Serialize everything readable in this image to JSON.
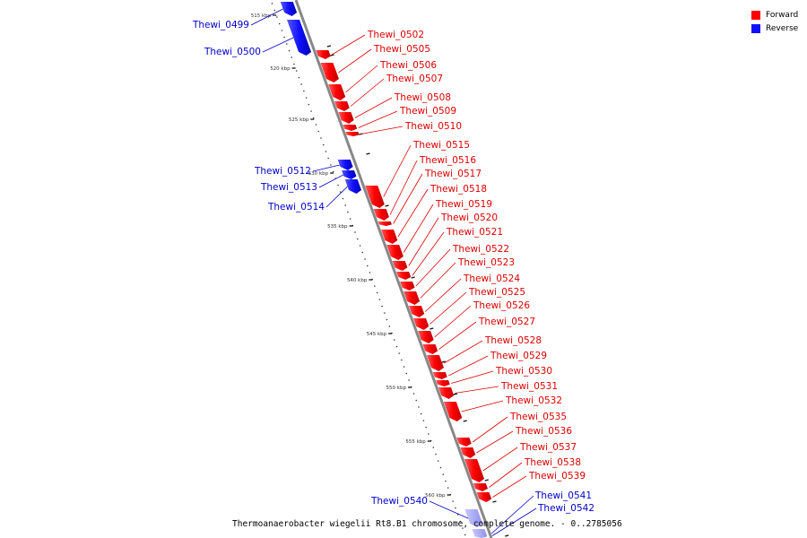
{
  "legend": {
    "forward_label": "Forward",
    "reverse_label": "Reverse",
    "forward_color": "#ff0000",
    "reverse_color": "#1010ff"
  },
  "caption": "Thermoanaerobacter wiegelii Rt8.B1 chromosome, complete genome. - 0..2785056",
  "scale_ticks": [
    "515 kbp",
    "520 kbp",
    "525 kbp",
    "530 kbp",
    "535 kbp",
    "540 kbp",
    "545 kbp",
    "550 kbp",
    "555 kbp",
    "560 kbp"
  ],
  "genes_forward": [
    "Thewi_0502",
    "Thewi_0505",
    "Thewi_0506",
    "Thewi_0507",
    "Thewi_0508",
    "Thewi_0509",
    "Thewi_0510",
    "Thewi_0515",
    "Thewi_0516",
    "Thewi_0517",
    "Thewi_0518",
    "Thewi_0519",
    "Thewi_0520",
    "Thewi_0521",
    "Thewi_0522",
    "Thewi_0523",
    "Thewi_0524",
    "Thewi_0525",
    "Thewi_0526",
    "Thewi_0527",
    "Thewi_0528",
    "Thewi_0529",
    "Thewi_0530",
    "Thewi_0531",
    "Thewi_0532",
    "Thewi_0535",
    "Thewi_0536",
    "Thewi_0537",
    "Thewi_0538",
    "Thewi_0539"
  ],
  "genes_reverse": [
    "Thewi_0499",
    "Thewi_0500",
    "Thewi_0512",
    "Thewi_0513",
    "Thewi_0514",
    "Thewi_0540",
    "Thewi_0541",
    "Thewi_0542"
  ]
}
